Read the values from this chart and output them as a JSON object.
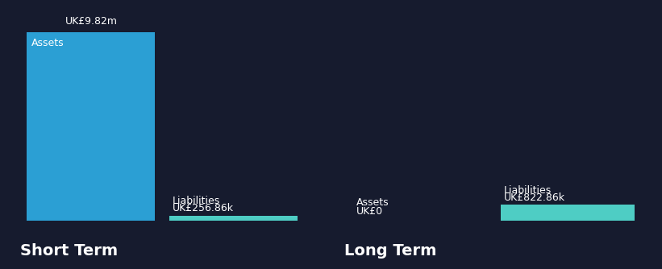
{
  "background_color": "#161b2e",
  "short_term": {
    "assets_value": 9820000,
    "liabilities_value": 256860,
    "assets_label": "Assets",
    "liabilities_label": "Liabilities",
    "assets_display": "UK£9.82m",
    "liabilities_display": "UK£256.86k",
    "section_label": "Short Term"
  },
  "long_term": {
    "assets_value": 0,
    "liabilities_value": 822860,
    "assets_label": "Assets",
    "liabilities_label": "Liabilities",
    "assets_display": "UK£0",
    "liabilities_display": "UK£822.86k",
    "section_label": "Long Term"
  },
  "bar_color_assets": "#2b9fd4",
  "bar_color_liabilities": "#4ecdc4",
  "text_color": "#ffffff",
  "section_label_color": "#ffffff",
  "section_label_fontsize": 14,
  "value_label_fontsize": 9,
  "bar_label_fontsize": 9
}
